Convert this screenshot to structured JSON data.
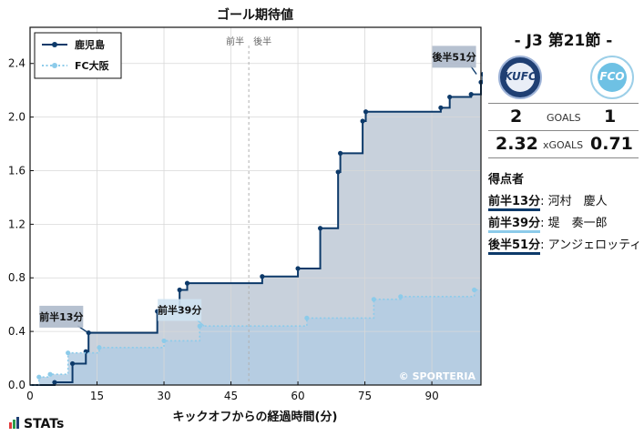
{
  "chart_data": {
    "type": "line",
    "step": true,
    "title": "ゴール期待値",
    "xlabel": "キックオフからの経過時間(分)",
    "ylabel": "",
    "xlim": [
      0,
      101
    ],
    "ylim": [
      0,
      2.67
    ],
    "xticks": [
      0,
      15,
      30,
      45,
      60,
      75,
      90
    ],
    "yticks": [
      0.0,
      0.4,
      0.8,
      1.2,
      1.6,
      2.0,
      2.4
    ],
    "half_time_x": 49,
    "half_labels": [
      "前半",
      "後半"
    ],
    "watermark": "© SPORTERIA",
    "legend_position": "top-left",
    "series": [
      {
        "name": "鹿児島",
        "color": "#0d3a6a",
        "fill": "#c8d1dc",
        "style": "solid",
        "x": [
          0,
          5.5,
          9.5,
          12.5,
          13.1,
          28.5,
          33.5,
          35.2,
          52,
          60,
          65,
          69,
          69.5,
          74.5,
          75.2,
          92,
          94,
          98.8,
          101,
          101.5
        ],
        "y": [
          0,
          0.02,
          0.16,
          0.25,
          0.39,
          0.55,
          0.71,
          0.76,
          0.81,
          0.87,
          1.17,
          1.59,
          1.73,
          1.97,
          2.04,
          2.07,
          2.15,
          2.17,
          2.26,
          2.32
        ]
      },
      {
        "name": "FC大阪",
        "color": "#8ccbea",
        "fill": "#b3cde3",
        "style": "dotted",
        "x": [
          0,
          2,
          4.5,
          8.5,
          15.5,
          30,
          38,
          62,
          77,
          83,
          99.5
        ],
        "y": [
          0,
          0.06,
          0.08,
          0.24,
          0.28,
          0.33,
          0.44,
          0.5,
          0.64,
          0.66,
          0.71
        ]
      }
    ],
    "annotations": [
      {
        "text": "前半13分",
        "x": 13,
        "y": 0.39,
        "series": 0,
        "box_x": 7,
        "box_y": 0.51
      },
      {
        "text": "前半39分",
        "x": 39,
        "y": 0.44,
        "series": 1,
        "box_x": 33.5,
        "box_y": 0.56
      },
      {
        "text": "後半51分",
        "x": 100,
        "y": 2.32,
        "series": 0,
        "box_x": 95,
        "box_y": 2.45
      }
    ]
  },
  "match": {
    "title": "-  J3 第21節  -",
    "home_logo_text": "KUFC",
    "away_logo_text": "FCO"
  },
  "stats": {
    "goals_home": "2",
    "goals_label": "GOALS",
    "goals_away": "1",
    "xg_home": "2.32",
    "xg_label": "xGOALS",
    "xg_away": "0.71"
  },
  "scorers": {
    "title": "得点者",
    "items": [
      {
        "when": "前半13分",
        "name": ": 河村　慶人",
        "color": "#0d3a6a"
      },
      {
        "when": "前半39分",
        "name": ": 堤　奏一郎",
        "color": "#8ccbea"
      },
      {
        "when": "後半51分",
        "name": ": アンジェロッティ",
        "color": "#0d3a6a"
      }
    ]
  },
  "brand": {
    "name": "STATs",
    "bar_colors": [
      "#e23c3c",
      "#2c9a4a",
      "#1f3f73"
    ]
  }
}
